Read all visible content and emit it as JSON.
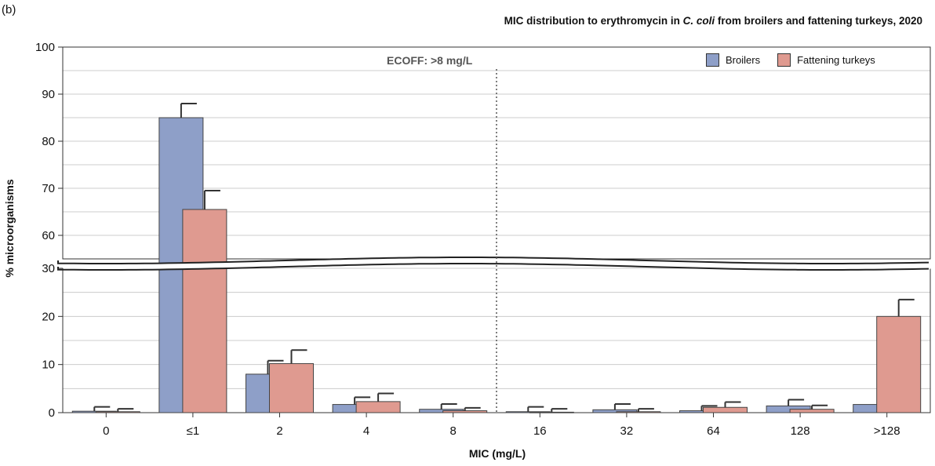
{
  "panel_label": "(b)",
  "title": {
    "prefix": "MIC distribution to erythromycin in ",
    "organism": "C. coli",
    "suffix": " from broilers and fattening turkeys, 2020"
  },
  "ecoff_label": "ECOFF:   >8 mg/L",
  "colors": {
    "broilers": "#8e9fc8",
    "turkeys": "#df9a90",
    "grid": "#cccccc",
    "ecoff_line": "#555555"
  },
  "chart_data": {
    "type": "bar",
    "title": "MIC distribution to erythromycin in C. coli from broilers and fattening turkeys, 2020",
    "xlabel": "MIC (mg/L)",
    "ylabel": "% microorganisms",
    "categories": [
      "0",
      "≤1",
      "2",
      "4",
      "8",
      "16",
      "32",
      "64",
      "128",
      ">128"
    ],
    "series": [
      {
        "name": "Broilers",
        "values": [
          0.3,
          85,
          8,
          1.7,
          0.7,
          0.2,
          0.6,
          0.4,
          1.4,
          1.7
        ],
        "error_upper": [
          1.2,
          88,
          10.8,
          3.2,
          1.8,
          1.2,
          1.8,
          1.4,
          2.7,
          null
        ]
      },
      {
        "name": "Fattening turkeys",
        "values": [
          0.2,
          65.5,
          10.2,
          2.3,
          0.4,
          0.1,
          0.2,
          1.1,
          0.7,
          20
        ],
        "error_upper": [
          0.8,
          69.5,
          13,
          4,
          1,
          0.8,
          0.8,
          2.2,
          1.5,
          23.5
        ]
      }
    ],
    "ylim_lower": [
      0,
      30
    ],
    "ylim_upper": [
      55,
      100
    ],
    "yticks_lower": [
      0,
      10,
      20,
      30
    ],
    "yticks_upper": [
      60,
      70,
      80,
      90,
      100
    ],
    "axis_break": true,
    "ecoff_between": [
      "8",
      "16"
    ],
    "grid": true,
    "legend_position": "top-right"
  }
}
